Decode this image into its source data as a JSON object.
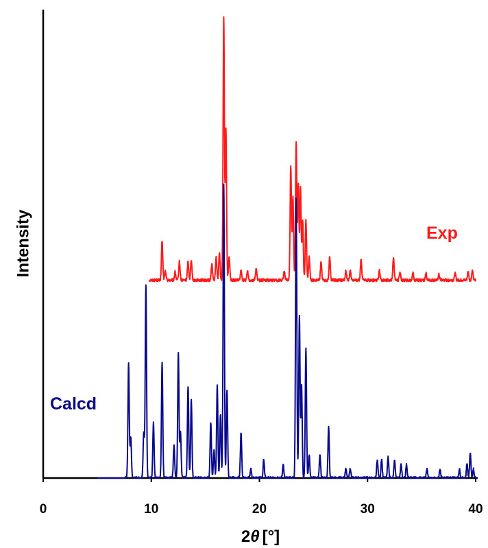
{
  "chart_data": {
    "type": "line",
    "xlabel_prefix": "2",
    "xlabel_symbol": "θ",
    "xlabel_unit": "[°]",
    "ylabel": "Intensity",
    "xlim": [
      0,
      40
    ],
    "x_ticks": [
      "0",
      "10",
      "20",
      "30",
      "40"
    ],
    "grid": false,
    "series": [
      {
        "name": "Exp",
        "color": "#ff1a1a",
        "baseline": 0.43,
        "x_range": [
          9.8,
          40
        ],
        "peaks": [
          {
            "x": 11.0,
            "h": 0.085
          },
          {
            "x": 11.3,
            "h": 0.02
          },
          {
            "x": 12.2,
            "h": 0.018
          },
          {
            "x": 12.6,
            "h": 0.04
          },
          {
            "x": 13.4,
            "h": 0.04
          },
          {
            "x": 13.7,
            "h": 0.045
          },
          {
            "x": 15.6,
            "h": 0.035
          },
          {
            "x": 16.0,
            "h": 0.05
          },
          {
            "x": 16.3,
            "h": 0.06
          },
          {
            "x": 16.7,
            "h": 0.57
          },
          {
            "x": 16.9,
            "h": 0.33
          },
          {
            "x": 17.2,
            "h": 0.05
          },
          {
            "x": 18.3,
            "h": 0.02
          },
          {
            "x": 18.9,
            "h": 0.02
          },
          {
            "x": 19.7,
            "h": 0.025
          },
          {
            "x": 22.3,
            "h": 0.02
          },
          {
            "x": 22.9,
            "h": 0.25
          },
          {
            "x": 23.1,
            "h": 0.18
          },
          {
            "x": 23.4,
            "h": 0.3
          },
          {
            "x": 23.6,
            "h": 0.21
          },
          {
            "x": 23.8,
            "h": 0.2
          },
          {
            "x": 24.0,
            "h": 0.13
          },
          {
            "x": 24.3,
            "h": 0.13
          },
          {
            "x": 24.6,
            "h": 0.05
          },
          {
            "x": 25.7,
            "h": 0.04
          },
          {
            "x": 26.5,
            "h": 0.05
          },
          {
            "x": 28.0,
            "h": 0.02
          },
          {
            "x": 28.4,
            "h": 0.02
          },
          {
            "x": 29.4,
            "h": 0.045
          },
          {
            "x": 31.1,
            "h": 0.02
          },
          {
            "x": 32.4,
            "h": 0.05
          },
          {
            "x": 33.0,
            "h": 0.018
          },
          {
            "x": 34.2,
            "h": 0.015
          },
          {
            "x": 35.4,
            "h": 0.015
          },
          {
            "x": 36.6,
            "h": 0.012
          },
          {
            "x": 38.1,
            "h": 0.015
          },
          {
            "x": 39.3,
            "h": 0.018
          },
          {
            "x": 39.7,
            "h": 0.02
          }
        ]
      },
      {
        "name": "Calcd",
        "color": "#0a0a8c",
        "baseline": 0.0,
        "x_range": [
          5.0,
          40
        ],
        "peaks": [
          {
            "x": 7.9,
            "h": 0.25
          },
          {
            "x": 8.1,
            "h": 0.09
          },
          {
            "x": 9.3,
            "h": 0.1
          },
          {
            "x": 9.5,
            "h": 0.42
          },
          {
            "x": 10.2,
            "h": 0.12
          },
          {
            "x": 11.0,
            "h": 0.25
          },
          {
            "x": 12.1,
            "h": 0.07
          },
          {
            "x": 12.5,
            "h": 0.27
          },
          {
            "x": 12.7,
            "h": 0.1
          },
          {
            "x": 13.4,
            "h": 0.2
          },
          {
            "x": 13.7,
            "h": 0.17
          },
          {
            "x": 15.5,
            "h": 0.12
          },
          {
            "x": 15.8,
            "h": 0.06
          },
          {
            "x": 16.1,
            "h": 0.2
          },
          {
            "x": 16.4,
            "h": 0.14
          },
          {
            "x": 16.7,
            "h": 0.64
          },
          {
            "x": 17.0,
            "h": 0.19
          },
          {
            "x": 18.3,
            "h": 0.1
          },
          {
            "x": 19.2,
            "h": 0.02
          },
          {
            "x": 20.4,
            "h": 0.04
          },
          {
            "x": 22.2,
            "h": 0.03
          },
          {
            "x": 23.4,
            "h": 0.61
          },
          {
            "x": 23.7,
            "h": 0.35
          },
          {
            "x": 23.9,
            "h": 0.2
          },
          {
            "x": 24.3,
            "h": 0.28
          },
          {
            "x": 24.6,
            "h": 0.05
          },
          {
            "x": 25.6,
            "h": 0.05
          },
          {
            "x": 26.4,
            "h": 0.11
          },
          {
            "x": 28.0,
            "h": 0.02
          },
          {
            "x": 28.4,
            "h": 0.02
          },
          {
            "x": 30.9,
            "h": 0.04
          },
          {
            "x": 31.3,
            "h": 0.04
          },
          {
            "x": 31.9,
            "h": 0.045
          },
          {
            "x": 32.5,
            "h": 0.04
          },
          {
            "x": 33.1,
            "h": 0.03
          },
          {
            "x": 33.6,
            "h": 0.03
          },
          {
            "x": 35.5,
            "h": 0.02
          },
          {
            "x": 36.7,
            "h": 0.018
          },
          {
            "x": 38.5,
            "h": 0.02
          },
          {
            "x": 39.2,
            "h": 0.03
          },
          {
            "x": 39.5,
            "h": 0.055
          },
          {
            "x": 39.8,
            "h": 0.02
          }
        ]
      }
    ],
    "annotations": [
      "Exp",
      "Calcd"
    ]
  }
}
